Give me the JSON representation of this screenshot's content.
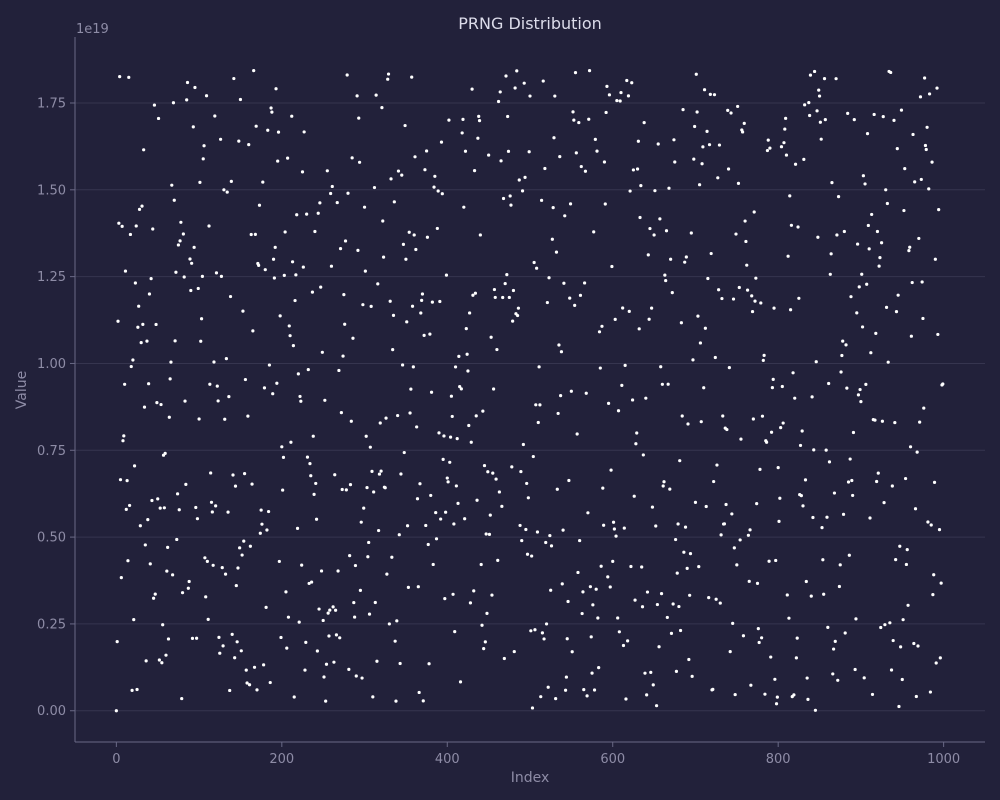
{
  "chart_data": {
    "type": "scatter",
    "title": "PRNG Distribution",
    "xlabel": "Index",
    "ylabel": "Value",
    "y_offset_label": "1e19",
    "x_ticks": [
      0,
      200,
      400,
      600,
      800,
      1000
    ],
    "x_tick_labels": [
      "0",
      "200",
      "400",
      "600",
      "800",
      "1000"
    ],
    "y_ticks": [
      0,
      0.25,
      0.5,
      0.75,
      1.0,
      1.25,
      1.5,
      1.75
    ],
    "y_tick_labels": [
      "0.00",
      "0.25",
      "0.50",
      "0.75",
      "1.00",
      "1.25",
      "1.50",
      "1.75"
    ],
    "xlim": [
      -50,
      1050
    ],
    "ylim": [
      -0.09,
      1.94
    ],
    "y_units": "1e19",
    "grid": "horizontal",
    "marker_color": "#ffffff",
    "background_color": "#22213a",
    "n_points": 1000,
    "y_sample_every_10": [
      0.0,
      0.94,
      1.01,
      1.06,
      1.2,
      0.61,
      0.16,
      1.47,
      0.34,
      1.21,
      0.84,
      0.43,
      0.59,
      1.5,
      0.22,
      1.76,
      1.63,
      0.06,
      1.27,
      1.3,
      0.76,
      1.08,
      0.97,
      1.43,
      1.38,
      0.26,
      1.28,
      0.21,
      1.49,
      0.1,
      1.45,
      0.04,
      0.69,
      0.25,
      0.85,
      1.3,
      1.37,
      1.2,
      0.62,
      0.8,
      0.67,
      0.99,
      1.45,
      1.79,
      1.37,
      1.6,
      1.04,
      1.23,
      1.21,
      0.49,
      1.77,
      0.83,
      0.25,
      1.77,
      0.52,
      0.92,
      0.49,
      0.57,
      0.35,
      1.58,
      0.43,
      1.78,
      1.15,
      1.56,
      0.9,
      1.37,
      0.94,
      1.3,
      0.3,
      0.41,
      0.6,
      0.93,
      0.06,
      0.31,
      1.56,
      0.42,
      1.41,
      0.84,
      0.21,
      1.62,
      0.7,
      1.6,
      0.9,
      0.59,
      0.33,
      1.77,
      0.24,
      1.82,
      1.38,
      0.62,
      0.89,
      1.33,
      1.38,
      1.5,
      1.7,
      0.09,
      0.76,
      1.36,
      1.68,
      1.3,
      0.69
    ]
  }
}
